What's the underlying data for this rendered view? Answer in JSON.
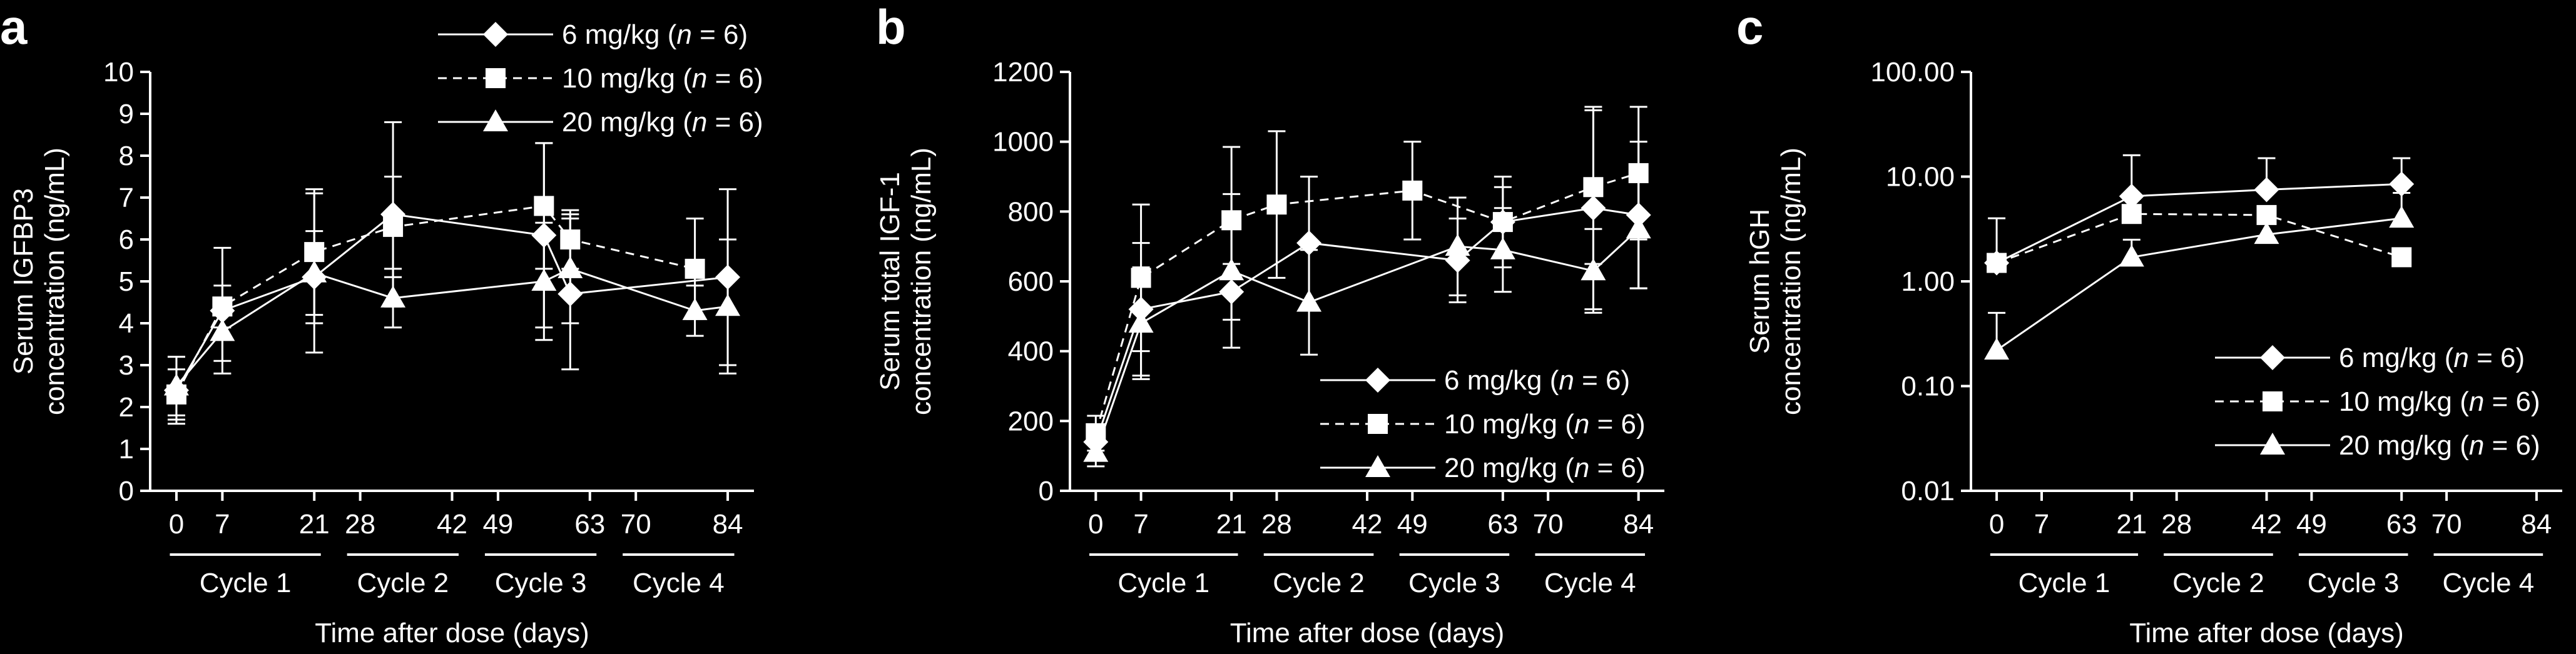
{
  "chart_data": [
    {
      "panel": "a",
      "type": "line",
      "ylabel_line1": "Serum IGFBP3",
      "ylabel_line2": "concentration (ng/mL)",
      "xlabel": "Time after dose (days)",
      "yscale": "linear",
      "ylim": [
        0,
        10
      ],
      "yticks": [
        0,
        1,
        2,
        3,
        4,
        5,
        6,
        7,
        8,
        9,
        10
      ],
      "ytick_labels": [
        "0",
        "1",
        "2",
        "3",
        "4",
        "5",
        "6",
        "7",
        "8",
        "9",
        "10"
      ],
      "xlim": [
        -4,
        88
      ],
      "xticks": [
        0,
        7,
        21,
        28,
        42,
        49,
        63,
        70,
        84
      ],
      "cycles": [
        "Cycle 1",
        "Cycle 2",
        "Cycle 3",
        "Cycle 4"
      ],
      "legend_position": "top-right",
      "series": [
        {
          "name": "6 mg/kg (n = 6)",
          "dose": "6 mg/kg",
          "n": "6",
          "marker": "diamond",
          "dash": "solid",
          "x": [
            0,
            7,
            21,
            33,
            56,
            60,
            84
          ],
          "y": [
            2.4,
            4.3,
            5.1,
            6.6,
            6.1,
            4.7,
            5.1
          ],
          "err": [
            0.8,
            1.5,
            1.1,
            2.2,
            2.2,
            1.8,
            2.1
          ]
        },
        {
          "name": "10 mg/kg (n = 6)",
          "dose": "10 mg/kg",
          "n": "6",
          "marker": "square",
          "dash": "dashed",
          "x": [
            0,
            7,
            21,
            33,
            56,
            60,
            79
          ],
          "y": [
            2.3,
            4.4,
            5.7,
            6.3,
            6.8,
            6.0,
            5.3
          ],
          "err": [
            0.6,
            0.5,
            1.5,
            1.2,
            1.5,
            0.7,
            1.2
          ]
        },
        {
          "name": "20 mg/kg (n = 6)",
          "dose": "20 mg/kg",
          "n": "6",
          "marker": "triangle",
          "dash": "solid",
          "x": [
            0,
            7,
            21,
            33,
            56,
            60,
            79,
            84
          ],
          "y": [
            2.5,
            3.8,
            5.2,
            4.6,
            5.0,
            5.3,
            4.3,
            4.4
          ],
          "err": [
            0.7,
            0.7,
            1.9,
            0.7,
            1.4,
            1.3,
            0.6,
            1.6
          ]
        }
      ]
    },
    {
      "panel": "b",
      "type": "line",
      "ylabel_line1": "Serum total IGF-1",
      "ylabel_line2": "concentration (ng/mL)",
      "xlabel": "Time after dose (days)",
      "yscale": "linear",
      "ylim": [
        0,
        1200
      ],
      "yticks": [
        0,
        200,
        400,
        600,
        800,
        1000,
        1200
      ],
      "ytick_labels": [
        "0",
        "200",
        "400",
        "600",
        "800",
        "1000",
        "1200"
      ],
      "xlim": [
        -4,
        88
      ],
      "xticks": [
        0,
        7,
        21,
        28,
        42,
        49,
        63,
        70,
        84
      ],
      "cycles": [
        "Cycle 1",
        "Cycle 2",
        "Cycle 3",
        "Cycle 4"
      ],
      "legend_position": "bottom-right",
      "series": [
        {
          "name": "6 mg/kg (n = 6)",
          "dose": "6 mg/kg",
          "n": "6",
          "marker": "diamond",
          "dash": "solid",
          "x": [
            0,
            7,
            21,
            33,
            56,
            63,
            77,
            84
          ],
          "y": [
            140,
            520,
            570,
            710,
            660,
            770,
            810,
            790
          ],
          "err": [
            50,
            190,
            80,
            190,
            120,
            100,
            290,
            210
          ]
        },
        {
          "name": "10 mg/kg (n = 6)",
          "dose": "10 mg/kg",
          "n": "6",
          "marker": "square",
          "dash": "dashed",
          "x": [
            0,
            7,
            21,
            28,
            49,
            63,
            77,
            84
          ],
          "y": [
            165,
            610,
            775,
            820,
            860,
            770,
            870,
            910
          ],
          "err": [
            50,
            210,
            210,
            210,
            140,
            130,
            220,
            190
          ]
        },
        {
          "name": "20 mg/kg (n = 6)",
          "dose": "20 mg/kg",
          "n": "6",
          "marker": "triangle",
          "dash": "solid",
          "x": [
            0,
            7,
            21,
            33,
            56,
            63,
            77,
            84
          ],
          "y": [
            110,
            480,
            630,
            540,
            700,
            690,
            630,
            750
          ],
          "err": [
            40,
            160,
            220,
            150,
            140,
            120,
            120,
            170
          ]
        }
      ]
    },
    {
      "panel": "c",
      "type": "line",
      "ylabel_line1": "Serum hGH",
      "ylabel_line2": "concentration (ng/mL)",
      "xlabel": "Time after dose (days)",
      "yscale": "log",
      "ylim": [
        0.01,
        100
      ],
      "yticks": [
        0.01,
        0.1,
        1,
        10,
        100
      ],
      "ytick_labels": [
        "0.01",
        "0.10",
        "1.00",
        "10.00",
        "100.00"
      ],
      "xlim": [
        -4,
        88
      ],
      "xticks": [
        0,
        7,
        21,
        28,
        42,
        49,
        63,
        70,
        84
      ],
      "cycles": [
        "Cycle 1",
        "Cycle 2",
        "Cycle 3",
        "Cycle 4"
      ],
      "legend_position": "bottom-right",
      "series": [
        {
          "name": "6 mg/kg (n = 6)",
          "dose": "6 mg/kg",
          "n": "6",
          "marker": "diamond",
          "dash": "solid",
          "x": [
            0,
            21,
            42,
            63
          ],
          "y": [
            1.5,
            6.5,
            7.5,
            8.5
          ],
          "err_hi": [
            4.0,
            16.0,
            15.0,
            15.0
          ]
        },
        {
          "name": "10 mg/kg (n = 6)",
          "dose": "10 mg/kg",
          "n": "6",
          "marker": "square",
          "dash": "dashed",
          "x": [
            0,
            21,
            42,
            63
          ],
          "y": [
            1.5,
            4.4,
            4.3,
            1.7
          ]
        },
        {
          "name": "20 mg/kg (n = 6)",
          "dose": "20 mg/kg",
          "n": "6",
          "marker": "triangle",
          "dash": "solid",
          "x": [
            0,
            21,
            42,
            63
          ],
          "y": [
            0.22,
            1.7,
            2.8,
            4.0
          ],
          "err_hi": [
            0.5,
            2.5,
            4.0,
            7.0
          ]
        }
      ]
    }
  ]
}
